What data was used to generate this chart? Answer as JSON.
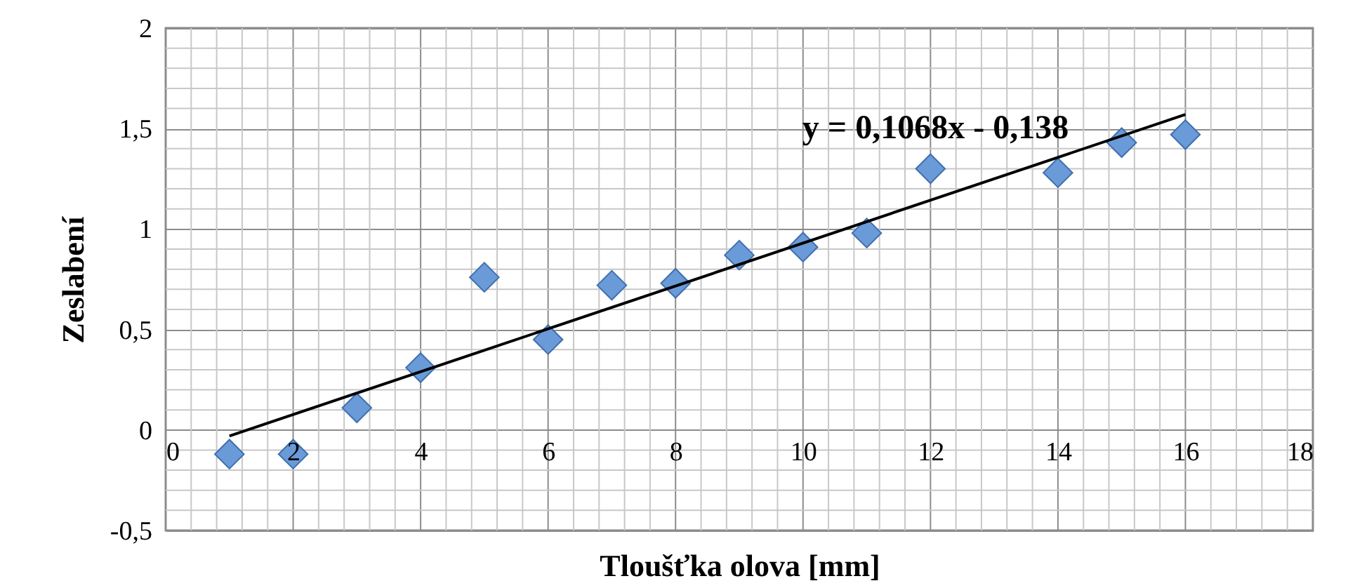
{
  "chart_data": {
    "type": "scatter",
    "xlabel": "Tloušťka olova [mm]",
    "ylabel": "Zeslabení",
    "annotations": [
      "y = 0,1068x - 0,138"
    ],
    "xlim": [
      0,
      18
    ],
    "xticks": [
      0,
      2,
      4,
      6,
      8,
      10,
      12,
      14,
      16,
      18
    ],
    "ylim": [
      -0.5,
      2
    ],
    "yticks": [
      {
        "value": -0.5,
        "label": "-0,5"
      },
      0,
      {
        "value": 0.5,
        "label": "0,5"
      },
      1,
      {
        "value": 1.5,
        "label": "1,5"
      },
      2
    ],
    "grid": true,
    "marker": "diamond",
    "series": [
      {
        "color": "#6a9bd8",
        "x": [
          1,
          2,
          3,
          4,
          5,
          6,
          7,
          8,
          9,
          10,
          11,
          12,
          14,
          15,
          16
        ],
        "values": [
          -0.12,
          -0.12,
          0.11,
          0.31,
          0.76,
          0.45,
          0.72,
          0.73,
          0.87,
          0.91,
          0.98,
          1.3,
          1.28,
          1.43,
          1.47
        ]
      },
      {
        "type": "line",
        "color": "#000000",
        "marker": "none",
        "x": [
          1,
          16
        ],
        "values": [
          -0.03,
          1.57
        ]
      }
    ]
  }
}
